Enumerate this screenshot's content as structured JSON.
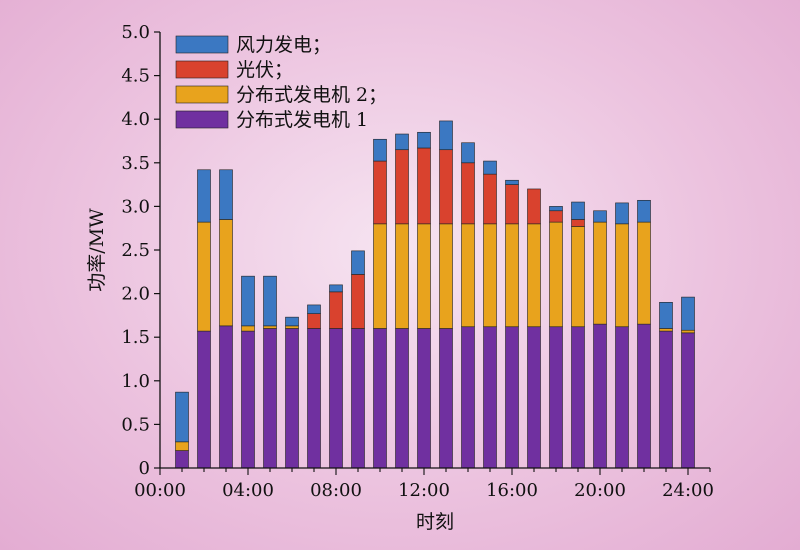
{
  "chart_data": {
    "type": "bar",
    "stacked": true,
    "xlabel": "时刻",
    "ylabel": "功率/MW",
    "ylim": [
      0,
      5.0
    ],
    "xlim": [
      0,
      25
    ],
    "yticks": [
      "0",
      "0.5",
      "1.0",
      "1.5",
      "2.0",
      "2.5",
      "3.0",
      "3.5",
      "4.0",
      "4.5",
      "5.0"
    ],
    "xticks": [
      {
        "value": 0,
        "label": "00:00"
      },
      {
        "value": 4,
        "label": "04:00"
      },
      {
        "value": 8,
        "label": "08:00"
      },
      {
        "value": 12,
        "label": "12:00"
      },
      {
        "value": 16,
        "label": "16:00"
      },
      {
        "value": 20,
        "label": "20:00"
      },
      {
        "value": 24,
        "label": "24:00"
      }
    ],
    "x": [
      1,
      2,
      3,
      4,
      5,
      6,
      7,
      8,
      9,
      10,
      11,
      12,
      13,
      14,
      15,
      16,
      17,
      18,
      19,
      20,
      21,
      22,
      23,
      24
    ],
    "legend_position": "top-left",
    "grid": false,
    "series": [
      {
        "name": "分布式发电机 1",
        "color": "#7030a0",
        "values": [
          0.2,
          1.57,
          1.63,
          1.57,
          1.6,
          1.6,
          1.6,
          1.6,
          1.6,
          1.6,
          1.6,
          1.6,
          1.6,
          1.62,
          1.62,
          1.62,
          1.62,
          1.62,
          1.62,
          1.65,
          1.62,
          1.65,
          1.57,
          1.55
        ]
      },
      {
        "name": "分布式发电机 2；",
        "color": "#e8a31d",
        "values": [
          0.1,
          1.25,
          1.22,
          0.06,
          0.03,
          0.03,
          0.0,
          0.0,
          0.0,
          1.2,
          1.2,
          1.2,
          1.2,
          1.18,
          1.18,
          1.18,
          1.18,
          1.2,
          1.15,
          1.17,
          1.18,
          1.17,
          0.03,
          0.03
        ]
      },
      {
        "name": "光伏；",
        "color": "#d9422e",
        "values": [
          0.0,
          0.0,
          0.0,
          0.0,
          0.0,
          0.0,
          0.17,
          0.42,
          0.62,
          0.72,
          0.85,
          0.87,
          0.85,
          0.7,
          0.57,
          0.45,
          0.4,
          0.13,
          0.08,
          0.0,
          0.0,
          0.0,
          0.0,
          0.0
        ]
      },
      {
        "name": "风力发电；",
        "color": "#3b78c2",
        "values": [
          0.57,
          0.6,
          0.57,
          0.57,
          0.57,
          0.1,
          0.1,
          0.08,
          0.27,
          0.25,
          0.18,
          0.18,
          0.33,
          0.23,
          0.15,
          0.05,
          0.0,
          0.05,
          0.2,
          0.13,
          0.24,
          0.25,
          0.3,
          0.38
        ]
      }
    ],
    "legend_order": [
      "风力发电；",
      "光伏；",
      "分布式发电机 2；",
      "分布式发电机 1"
    ]
  }
}
